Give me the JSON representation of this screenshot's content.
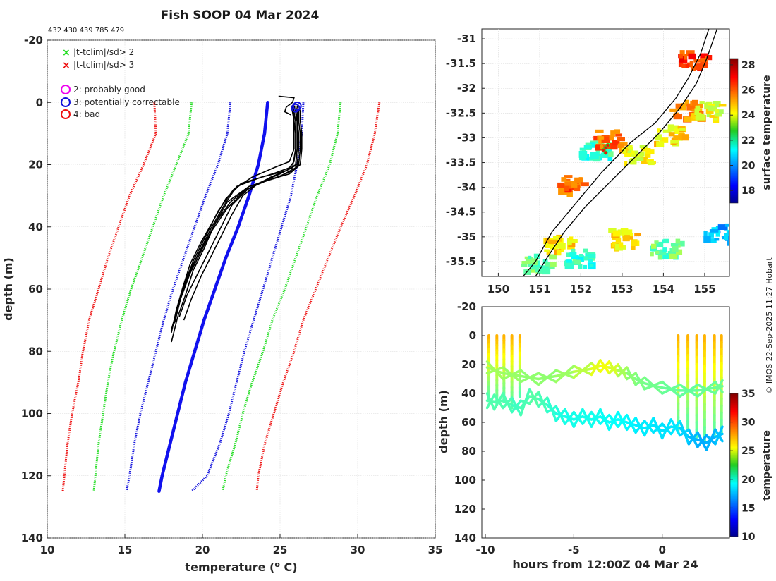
{
  "header": {
    "title": "Fish SOOP 04 Mar 2024",
    "ids": "432 430 439 785 479",
    "credit": "© IMOS 22-Sep-2025 11:27 Hobart"
  },
  "legend": {
    "crosses": [
      {
        "label": "|t-tclim|/sd> 2",
        "color": "#22dd22"
      },
      {
        "label": "|t-tclim|/sd> 3",
        "color": "#ee1111"
      }
    ],
    "circles": [
      {
        "label": "2: probably good",
        "color": "#ee00ee"
      },
      {
        "label": "3: potentially correctable",
        "color": "#1111dd"
      },
      {
        "label": "4: bad",
        "color": "#ee1111"
      }
    ]
  },
  "chart_data": [
    {
      "type": "line",
      "id": "profile",
      "title": "Fish SOOP 04 Mar 2024",
      "xlabel": "temperature (",
      "xlabel_sup": "o",
      "xlabel_tail": " C)",
      "ylabel": "depth (m)",
      "xlim": [
        10,
        35
      ],
      "ylim": [
        -20,
        140
      ],
      "xticks": [
        10,
        15,
        20,
        25,
        30,
        35
      ],
      "yticks": [
        -20,
        0,
        20,
        40,
        60,
        80,
        100,
        120,
        140
      ],
      "grid": true,
      "climatology": {
        "depth": [
          0,
          10,
          20,
          30,
          40,
          50,
          60,
          70,
          80,
          90,
          100,
          110,
          120,
          125
        ],
        "mean": [
          24.2,
          24.0,
          23.6,
          23.0,
          22.3,
          21.5,
          20.8,
          20.1,
          19.5,
          18.9,
          18.4,
          17.9,
          17.4,
          17.2
        ],
        "sd1_lo": [
          21.8,
          21.6,
          21.0,
          20.2,
          19.5,
          18.8,
          18.1,
          17.5,
          17.0,
          16.5,
          16.0,
          15.6,
          15.3,
          15.1
        ],
        "sd1_hi": [
          26.5,
          26.4,
          26.1,
          25.7,
          25.1,
          24.5,
          23.9,
          23.3,
          22.7,
          22.2,
          21.7,
          21.1,
          20.3,
          19.3
        ],
        "sd2_lo": [
          19.3,
          19.1,
          18.3,
          17.5,
          16.8,
          16.1,
          15.4,
          14.8,
          14.3,
          13.9,
          13.6,
          13.3,
          13.1,
          13.0
        ],
        "sd2_hi": [
          28.9,
          28.7,
          28.2,
          27.4,
          26.7,
          26.0,
          25.3,
          24.5,
          23.9,
          23.2,
          22.6,
          22.1,
          21.5,
          21.3
        ],
        "sd3_lo": [
          16.9,
          17.0,
          16.2,
          15.3,
          14.6,
          13.9,
          13.3,
          12.7,
          12.3,
          12.0,
          11.6,
          11.3,
          11.1,
          11.0
        ],
        "sd3_hi": [
          31.4,
          31.1,
          30.6,
          29.8,
          28.9,
          28.1,
          27.3,
          26.5,
          25.9,
          25.2,
          24.6,
          24.0,
          23.6,
          23.5
        ]
      },
      "casts": [
        {
          "t": [
            25.8,
            25.9,
            26.0,
            26.0,
            26.0,
            25.9,
            25.6,
            24.5,
            22.5,
            21.5,
            20.7,
            19.9,
            19.2,
            18.7,
            18.3,
            18.0
          ],
          "d": [
            1,
            3,
            6,
            10,
            15,
            19,
            21,
            23,
            26,
            31,
            38,
            45,
            52,
            60,
            67,
            74
          ]
        },
        {
          "t": [
            25.9,
            26.0,
            26.1,
            26.1,
            26.1,
            26.0,
            25.4,
            23.8,
            22.2,
            21.4,
            20.6,
            19.8,
            19.0,
            18.5,
            18.1
          ],
          "d": [
            1,
            3,
            6,
            10,
            15,
            20,
            22,
            24,
            27,
            33,
            40,
            48,
            56,
            64,
            72
          ]
        },
        {
          "t": [
            26.1,
            26.2,
            26.2,
            26.3,
            26.3,
            26.2,
            25.8,
            24.8,
            23.0,
            21.8,
            20.8,
            20.1,
            19.4,
            18.9,
            18.4,
            18.0
          ],
          "d": [
            1,
            3,
            6,
            10,
            15,
            20,
            22,
            24,
            27,
            32,
            39,
            47,
            54,
            62,
            69,
            77
          ]
        },
        {
          "t": [
            25.7,
            25.8,
            25.9,
            25.9,
            25.9,
            25.6,
            24.6,
            23.2,
            22.0,
            21.0,
            20.2,
            19.4,
            18.8,
            18.3
          ],
          "d": [
            1,
            3,
            6,
            10,
            15,
            19,
            21,
            24,
            28,
            35,
            43,
            51,
            59,
            67
          ]
        },
        {
          "t": [
            26.0,
            26.1,
            26.1,
            26.2,
            26.2,
            26.1,
            25.0,
            23.6,
            22.6,
            21.9,
            21.3,
            20.6,
            19.9,
            19.3,
            18.8
          ],
          "d": [
            1,
            3,
            6,
            10,
            15,
            20,
            23,
            26,
            30,
            36,
            42,
            49,
            56,
            63,
            70
          ]
        },
        {
          "t": [
            25.9,
            26.0,
            26.1,
            26.1,
            26.1,
            26.0,
            24.9,
            23.0,
            21.6,
            20.8,
            20.0,
            19.2,
            18.6,
            18.2
          ],
          "d": [
            1,
            3,
            6,
            10,
            15,
            21,
            24,
            27,
            32,
            39,
            47,
            55,
            63,
            71
          ]
        },
        {
          "t": [
            26.2,
            26.3,
            26.3,
            26.4,
            26.4,
            26.3,
            25.6,
            24.2,
            22.8,
            21.6,
            20.5,
            19.6,
            18.9,
            18.4,
            18.0
          ],
          "d": [
            1,
            3,
            6,
            10,
            15,
            20,
            23,
            25,
            28,
            34,
            42,
            50,
            58,
            66,
            73
          ]
        },
        {
          "t": [
            25.8,
            25.9,
            25.9,
            26.0,
            26.0,
            25.8,
            24.4,
            22.9,
            21.9,
            21.2,
            20.4,
            19.7,
            19.0,
            18.5
          ],
          "d": [
            1,
            3,
            6,
            10,
            15,
            21,
            24,
            28,
            33,
            40,
            48,
            55,
            62,
            69
          ]
        }
      ],
      "flags": [
        {
          "type": "circle",
          "color": "#1111dd",
          "t": 26.1,
          "d": 1.2
        },
        {
          "type": "circle",
          "color": "#1111dd",
          "t": 26.0,
          "d": 1.8
        }
      ],
      "surface_stub": {
        "t": [
          24.9,
          25.9,
          25.8,
          25.4,
          25.3,
          25.7
        ],
        "d": [
          -2,
          -1.5,
          0,
          1.5,
          3,
          4
        ]
      }
    },
    {
      "type": "heatmap",
      "id": "map",
      "xlim": [
        149.6,
        155.6
      ],
      "ylim": [
        -35.8,
        -30.8
      ],
      "xticks": [
        150,
        151,
        152,
        153,
        154,
        155
      ],
      "yticks": [
        -31,
        -31.5,
        -32,
        -32.5,
        -33,
        -33.5,
        -34,
        -34.5,
        -35,
        -35.5
      ],
      "colorbar": {
        "label": "surface temperature",
        "min": 17,
        "max": 28.5,
        "ticks": [
          18,
          20,
          22,
          24,
          26,
          28
        ]
      },
      "coastline": [
        [
          155.1,
          -30.8
        ],
        [
          154.9,
          -31.3
        ],
        [
          154.6,
          -31.8
        ],
        [
          154.3,
          -32.2
        ],
        [
          153.8,
          -32.7
        ],
        [
          153.2,
          -33.1
        ],
        [
          152.5,
          -33.7
        ],
        [
          151.9,
          -34.3
        ],
        [
          151.3,
          -34.9
        ],
        [
          150.9,
          -35.5
        ],
        [
          150.6,
          -35.8
        ]
      ],
      "track": [
        [
          155.3,
          -30.8
        ],
        [
          155.05,
          -31.4
        ],
        [
          154.8,
          -31.9
        ],
        [
          154.4,
          -32.4
        ],
        [
          153.9,
          -32.9
        ],
        [
          153.3,
          -33.4
        ],
        [
          152.7,
          -33.9
        ],
        [
          152.1,
          -34.4
        ],
        [
          151.6,
          -34.9
        ],
        [
          151.2,
          -35.4
        ],
        [
          150.9,
          -35.8
        ]
      ],
      "sst_patches": [
        {
          "lon": 150.9,
          "lat": -35.5,
          "temp": 22.5
        },
        {
          "lon": 151.4,
          "lat": -35.1,
          "temp": 24.5
        },
        {
          "lon": 151.9,
          "lat": -35.4,
          "temp": 22.0
        },
        {
          "lon": 152.3,
          "lat": -33.2,
          "temp": 22.0
        },
        {
          "lon": 152.6,
          "lat": -33.0,
          "temp": 26.0
        },
        {
          "lon": 153.3,
          "lat": -33.3,
          "temp": 24.0
        },
        {
          "lon": 154.1,
          "lat": -32.9,
          "temp": 24.5
        },
        {
          "lon": 154.5,
          "lat": -32.4,
          "temp": 25.5
        },
        {
          "lon": 155.0,
          "lat": -32.4,
          "temp": 24.0
        },
        {
          "lon": 151.7,
          "lat": -33.9,
          "temp": 26.0
        },
        {
          "lon": 153.0,
          "lat": -35.0,
          "temp": 24.5
        },
        {
          "lon": 155.3,
          "lat": -34.9,
          "temp": 20.5
        },
        {
          "lon": 154.0,
          "lat": -35.2,
          "temp": 22.5
        },
        {
          "lon": 154.7,
          "lat": -31.4,
          "temp": 26.5
        }
      ],
      "deployments": [
        [
          152.55,
          -33.25
        ],
        [
          152.6,
          -33.2
        ],
        [
          152.65,
          -33.15
        ],
        [
          152.6,
          -33.3
        ]
      ]
    },
    {
      "type": "scatter",
      "id": "section",
      "xlabel": "hours from 12:00Z 04 Mar 24",
      "ylabel": "depth (m)",
      "xlim": [
        -10.2,
        3.8
      ],
      "ylim": [
        -20,
        140
      ],
      "xticks": [
        -10,
        -5,
        0
      ],
      "yticks": [
        -20,
        0,
        20,
        40,
        60,
        80,
        100,
        120,
        140
      ],
      "colorbar": {
        "label": "temperature",
        "min": 10,
        "max": 35,
        "ticks": [
          10,
          15,
          20,
          25,
          30,
          35
        ]
      },
      "bottom_path": {
        "hours": [
          -9.9,
          -9.5,
          -9.0,
          -8.5,
          -8.0,
          -7.5,
          -7.0,
          -6.5,
          -6.0,
          -5.5,
          -5.0,
          -4.5,
          -4.0,
          -3.5,
          -3.0,
          -2.5,
          -2.0,
          -1.5,
          -1.0,
          -0.5,
          0.0,
          0.5,
          1.0,
          1.5,
          2.0,
          2.5,
          3.0,
          3.4
        ],
        "depth": [
          45,
          46,
          45,
          48,
          50,
          42,
          44,
          48,
          54,
          56,
          58,
          56,
          58,
          56,
          60,
          58,
          60,
          62,
          64,
          62,
          66,
          63,
          64,
          70,
          72,
          74,
          70,
          68
        ],
        "temp": [
          21.5,
          21.2,
          21.5,
          21.0,
          20.8,
          21.6,
          21.4,
          20.8,
          20.2,
          20.0,
          19.8,
          20.0,
          19.7,
          19.9,
          19.3,
          19.6,
          19.3,
          19.0,
          18.8,
          19.0,
          18.5,
          18.9,
          18.7,
          17.8,
          17.5,
          17.2,
          17.8,
          18.0
        ]
      },
      "mixed_layer": {
        "hours": [
          -9.9,
          -9.0,
          -8.0,
          -7.0,
          -6.0,
          -5.0,
          -4.0,
          -3.5,
          -3.0,
          -2.5,
          -2.0,
          -1.5,
          -1.0,
          0.0,
          1.0,
          2.0,
          3.0,
          3.4
        ],
        "depth": [
          22,
          26,
          28,
          30,
          28,
          25,
          23,
          21,
          22,
          24,
          26,
          30,
          33,
          36,
          38,
          38,
          36,
          35
        ],
        "temp": [
          23.5,
          23.2,
          23.0,
          22.8,
          23.0,
          23.4,
          24.5,
          25.5,
          25.2,
          24.0,
          23.0,
          22.5,
          22.3,
          22.0,
          21.8,
          21.8,
          22.0,
          22.1
        ]
      },
      "casts": [
        {
          "hour": -9.8,
          "bottom": 45
        },
        {
          "hour": -9.35,
          "bottom": 48
        },
        {
          "hour": -8.95,
          "bottom": 46
        },
        {
          "hour": -8.5,
          "bottom": 50
        },
        {
          "hour": -8.05,
          "bottom": 42
        },
        {
          "hour": 0.9,
          "bottom": 66
        },
        {
          "hour": 1.45,
          "bottom": 64
        },
        {
          "hour": 1.95,
          "bottom": 70
        },
        {
          "hour": 2.4,
          "bottom": 74
        },
        {
          "hour": 2.95,
          "bottom": 70
        },
        {
          "hour": 3.35,
          "bottom": 68
        }
      ],
      "surface_temp": 27.5
    }
  ]
}
